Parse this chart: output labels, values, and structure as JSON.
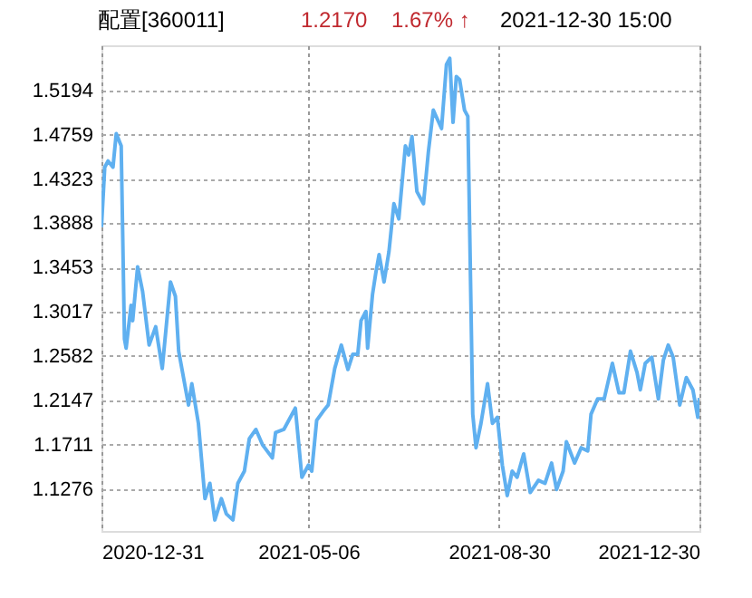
{
  "chart_data": {
    "type": "line",
    "title": "配置[360011]",
    "annotations": [
      "1.2170",
      "1.67% ↑",
      "2021-12-30 15:00"
    ],
    "x": [
      "2020-12-31",
      "2021-01-02",
      "2021-01-04",
      "2021-01-07",
      "2021-01-09",
      "2021-01-12",
      "2021-01-14",
      "2021-01-15",
      "2021-01-18",
      "2021-01-19",
      "2021-01-22",
      "2021-01-25",
      "2021-01-29",
      "2021-02-02",
      "2021-02-06",
      "2021-02-11",
      "2021-02-14",
      "2021-02-16",
      "2021-02-22",
      "2021-02-24",
      "2021-02-28",
      "2021-03-04",
      "2021-03-07",
      "2021-03-10",
      "2021-03-14",
      "2021-03-17",
      "2021-03-21",
      "2021-03-24",
      "2021-03-28",
      "2021-03-31",
      "2021-04-04",
      "2021-04-08",
      "2021-04-14",
      "2021-04-16",
      "2021-04-21",
      "2021-04-28",
      "2021-05-02",
      "2021-05-06",
      "2021-05-08",
      "2021-05-11",
      "2021-05-15",
      "2021-05-18",
      "2021-05-22",
      "2021-05-26",
      "2021-05-30",
      "2021-06-02",
      "2021-06-05",
      "2021-06-07",
      "2021-06-10",
      "2021-06-11",
      "2021-06-14",
      "2021-06-16",
      "2021-06-18",
      "2021-06-21",
      "2021-06-24",
      "2021-06-27",
      "2021-06-30",
      "2021-07-04",
      "2021-07-06",
      "2021-07-08",
      "2021-07-11",
      "2021-07-15",
      "2021-07-18",
      "2021-07-21",
      "2021-07-26",
      "2021-07-29",
      "2021-07-31",
      "2021-08-02",
      "2021-08-04",
      "2021-08-06",
      "2021-08-09",
      "2021-08-11",
      "2021-08-14",
      "2021-08-16",
      "2021-08-19",
      "2021-08-23",
      "2021-08-26",
      "2021-08-29",
      "2021-09-01",
      "2021-09-04",
      "2021-09-07",
      "2021-09-10",
      "2021-09-14",
      "2021-09-18",
      "2021-09-23",
      "2021-09-27",
      "2021-10-01",
      "2021-10-04",
      "2021-10-08",
      "2021-10-10",
      "2021-10-15",
      "2021-10-19",
      "2021-10-23",
      "2021-10-25",
      "2021-10-29",
      "2021-11-02",
      "2021-11-07",
      "2021-11-11",
      "2021-11-14",
      "2021-11-18",
      "2021-11-22",
      "2021-11-24",
      "2021-11-27",
      "2021-12-01",
      "2021-12-05",
      "2021-12-08",
      "2021-12-11",
      "2021-12-14",
      "2021-12-18",
      "2021-12-22",
      "2021-12-26",
      "2021-12-29",
      "2021-12-30"
    ],
    "series": [
      {
        "color": "#5fb0f0",
        "values": [
          1.385,
          1.444,
          1.45,
          1.444,
          1.477,
          1.465,
          1.275,
          1.266,
          1.308,
          1.293,
          1.346,
          1.322,
          1.269,
          1.287,
          1.246,
          1.331,
          1.317,
          1.263,
          1.21,
          1.231,
          1.192,
          1.118,
          1.133,
          1.097,
          1.118,
          1.103,
          1.097,
          1.133,
          1.145,
          1.177,
          1.186,
          1.171,
          1.158,
          1.183,
          1.186,
          1.207,
          1.139,
          1.151,
          1.145,
          1.195,
          1.204,
          1.21,
          1.246,
          1.269,
          1.245,
          1.26,
          1.26,
          1.293,
          1.302,
          1.266,
          1.319,
          1.34,
          1.358,
          1.331,
          1.361,
          1.408,
          1.393,
          1.465,
          1.456,
          1.474,
          1.42,
          1.408,
          1.459,
          1.5,
          1.482,
          1.545,
          1.551,
          1.488,
          1.533,
          1.53,
          1.5,
          1.494,
          1.201,
          1.168,
          1.192,
          1.231,
          1.192,
          1.198,
          1.151,
          1.121,
          1.145,
          1.139,
          1.162,
          1.124,
          1.136,
          1.133,
          1.153,
          1.127,
          1.145,
          1.174,
          1.153,
          1.168,
          1.165,
          1.201,
          1.216,
          1.216,
          1.251,
          1.222,
          1.222,
          1.263,
          1.242,
          1.225,
          1.251,
          1.257,
          1.216,
          1.254,
          1.269,
          1.257,
          1.21,
          1.237,
          1.225,
          1.198,
          1.217
        ]
      }
    ],
    "xlim": [
      "2020-12-31",
      "2021-12-30"
    ],
    "xticks": [
      "2020-12-31",
      "2021-05-06",
      "2021-08-30",
      "2021-12-30"
    ],
    "ylim": [
      1.0862,
      1.5638
    ],
    "yticks": [
      1.1276,
      1.1711,
      1.2147,
      1.2582,
      1.3017,
      1.3453,
      1.3888,
      1.4323,
      1.4759,
      1.5194
    ],
    "grid": true,
    "marker": "none",
    "line_style": "solid"
  }
}
